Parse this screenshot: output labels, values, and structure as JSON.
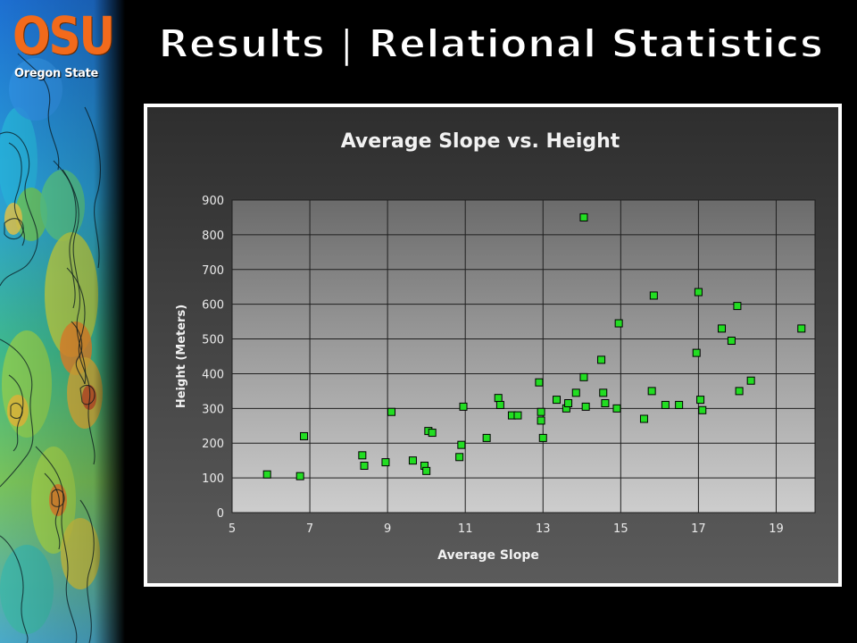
{
  "slide": {
    "title": "Results | Relational Statistics"
  },
  "logo": {
    "mark": "OSU",
    "subtitle": "Oregon State",
    "color": "#f26a1b"
  },
  "chart_data": {
    "type": "scatter",
    "title": "Average Slope vs. Height",
    "xlabel": "Average Slope",
    "ylabel": "Height (Meters)",
    "xlim": [
      5,
      20
    ],
    "ylim": [
      0,
      900
    ],
    "xticks": [
      5,
      7,
      9,
      11,
      13,
      15,
      17,
      19
    ],
    "yticks": [
      0,
      100,
      200,
      300,
      400,
      500,
      600,
      700,
      800,
      900
    ],
    "grid": true,
    "legend": "none",
    "marker_color": "#22dd22",
    "series": [
      {
        "x": [
          5.9,
          6.75,
          6.85,
          8.35,
          8.4,
          8.95,
          9.1,
          9.65,
          9.95,
          10.0,
          10.05,
          10.15,
          10.85,
          10.9,
          10.95,
          11.55,
          11.85,
          11.9,
          12.2,
          12.35,
          12.9,
          12.95,
          12.95,
          13.0,
          13.35,
          13.6,
          13.65,
          13.85,
          14.05,
          14.05,
          14.1,
          14.5,
          14.55,
          14.6,
          14.9,
          14.95,
          15.6,
          15.8,
          15.85,
          16.15,
          16.5,
          16.95,
          17.0,
          17.05,
          17.1,
          17.6,
          17.85,
          18.0,
          18.05,
          18.35,
          19.65
        ],
        "y": [
          110,
          105,
          220,
          165,
          135,
          145,
          290,
          150,
          135,
          120,
          235,
          230,
          160,
          195,
          305,
          215,
          330,
          310,
          280,
          280,
          375,
          290,
          265,
          215,
          325,
          300,
          315,
          345,
          850,
          390,
          305,
          440,
          345,
          315,
          300,
          545,
          270,
          350,
          625,
          310,
          310,
          460,
          635,
          325,
          295,
          530,
          495,
          595,
          350,
          380,
          530
        ]
      }
    ]
  }
}
